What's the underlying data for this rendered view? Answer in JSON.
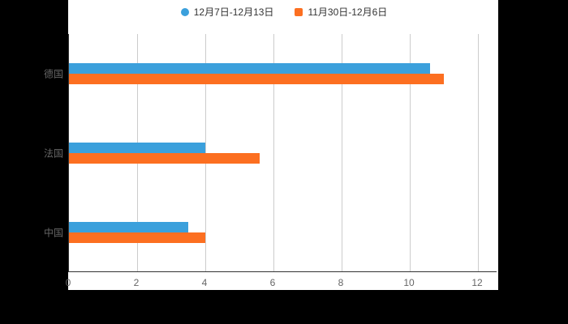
{
  "chart_data": {
    "type": "bar",
    "orientation": "horizontal",
    "title": "",
    "xlabel": "",
    "ylabel": "",
    "categories": [
      "德国",
      "法国",
      "中国"
    ],
    "series": [
      {
        "name": "12月7日-12月13日",
        "color": "#3ba0dc",
        "marker": "circle",
        "values": [
          10.6,
          4,
          3.5
        ]
      },
      {
        "name": "11月30日-12月6日",
        "color": "#fc6f21",
        "marker": "rect",
        "values": [
          11,
          5.6,
          4
        ]
      }
    ],
    "xlim": [
      0,
      12
    ],
    "xticks": [
      0,
      2,
      4,
      6,
      8,
      10,
      12
    ],
    "grid": "vertical-gridlines-on",
    "legend_position": "top-center"
  },
  "colors": {
    "page_background": "#000000",
    "plot_background": "#ffffff",
    "gridline": "#cccccc",
    "axis_line": "#333333",
    "axis_label": "#666666",
    "legend_text": "#333333"
  }
}
